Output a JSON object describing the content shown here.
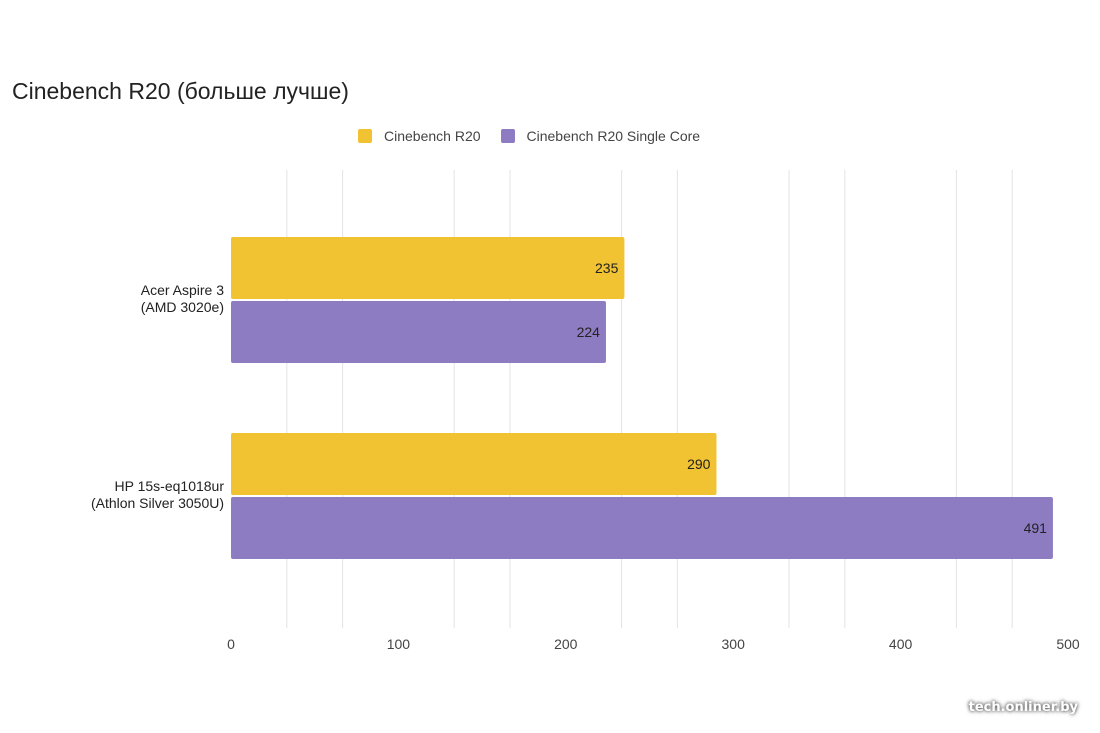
{
  "chart_data": {
    "type": "bar",
    "orientation": "horizontal",
    "title": "Cinebench R20 (больше лучше)",
    "categories": [
      [
        "Acer Aspire 3",
        "(AMD 3020e)"
      ],
      [
        "HP 15s-eq1018ur",
        "(Athlon Silver 3050U)"
      ]
    ],
    "series": [
      {
        "name": "Cinebench R20",
        "color": "#f1c232",
        "values": [
          235,
          290
        ]
      },
      {
        "name": "Cinebench R20 Single Core",
        "color": "#8e7cc3",
        "values": [
          224,
          491
        ]
      }
    ],
    "xlim": [
      0,
      500
    ],
    "xticks": [
      "0",
      "100",
      "200",
      "300",
      "400",
      "500"
    ],
    "legend_position": "top",
    "grid": true
  },
  "watermark": "tech.onliner.by"
}
